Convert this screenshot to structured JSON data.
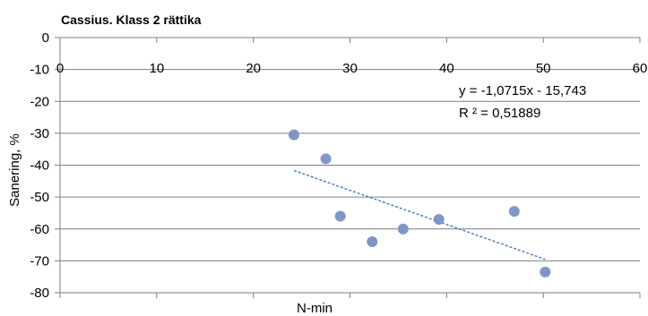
{
  "chart_data": {
    "type": "scatter",
    "title": "Cassius. Klass 2 rättika",
    "xlabel": "N-min",
    "ylabel": "Sanering, %",
    "xlim": [
      0,
      60
    ],
    "ylim": [
      -80,
      0
    ],
    "x_ticks": [
      "0",
      "10",
      "20",
      "30",
      "40",
      "50",
      "60"
    ],
    "y_ticks": [
      "0",
      "-10",
      "-20",
      "-30",
      "-40",
      "-50",
      "-60",
      "-70",
      "-80"
    ],
    "x_tick_values": [
      0,
      10,
      20,
      30,
      40,
      50,
      60
    ],
    "y_tick_values": [
      0,
      -10,
      -20,
      -30,
      -40,
      -50,
      -60,
      -70,
      -80
    ],
    "grid": "horizontal",
    "legend": "none",
    "points": [
      {
        "x": 24.2,
        "y": -30.5
      },
      {
        "x": 27.5,
        "y": -38
      },
      {
        "x": 29.0,
        "y": -56
      },
      {
        "x": 32.3,
        "y": -64
      },
      {
        "x": 35.5,
        "y": -60
      },
      {
        "x": 39.2,
        "y": -57
      },
      {
        "x": 47.0,
        "y": -54.5
      },
      {
        "x": 50.2,
        "y": -73.5
      }
    ],
    "trendline": {
      "slope": -1.0715,
      "intercept": -15.743,
      "x_range": [
        24.2,
        50.2
      ],
      "equation_text": "y = -1,0715x - 15,743",
      "r2_prefix": "R ² = ",
      "r2_value": "0,51889"
    },
    "colors": {
      "marker": "#7f97c6",
      "trendline": "#4f7fbf",
      "grid": "#7f7f7f",
      "axis": "#7f7f7f"
    }
  }
}
